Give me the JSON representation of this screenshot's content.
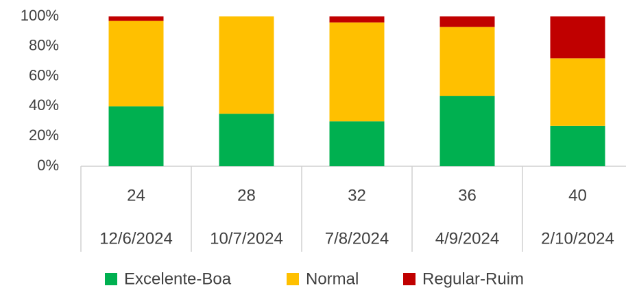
{
  "chart_data": {
    "type": "stacked_bar_100",
    "categories": [
      "24",
      "28",
      "32",
      "36",
      "40"
    ],
    "subcategories": [
      "12/6/2024",
      "10/7/2024",
      "7/8/2024",
      "4/9/2024",
      "2/10/2024"
    ],
    "series": [
      {
        "name": "Excelente-Boa",
        "color": "#00b050",
        "values": [
          40,
          35,
          30,
          47,
          27
        ]
      },
      {
        "name": "Normal",
        "color": "#ffc000",
        "values": [
          57,
          65,
          66,
          46,
          45
        ]
      },
      {
        "name": "Regular-Ruim",
        "color": "#c00000",
        "values": [
          3,
          0,
          4,
          7,
          28
        ]
      }
    ],
    "ylim": [
      0,
      100
    ],
    "yticks": [
      {
        "value": 0,
        "label": "0%"
      },
      {
        "value": 20,
        "label": "20%"
      },
      {
        "value": 40,
        "label": "40%"
      },
      {
        "value": 60,
        "label": "60%"
      },
      {
        "value": 80,
        "label": "80%"
      },
      {
        "value": 100,
        "label": "100%"
      }
    ],
    "legend": "bottom"
  }
}
